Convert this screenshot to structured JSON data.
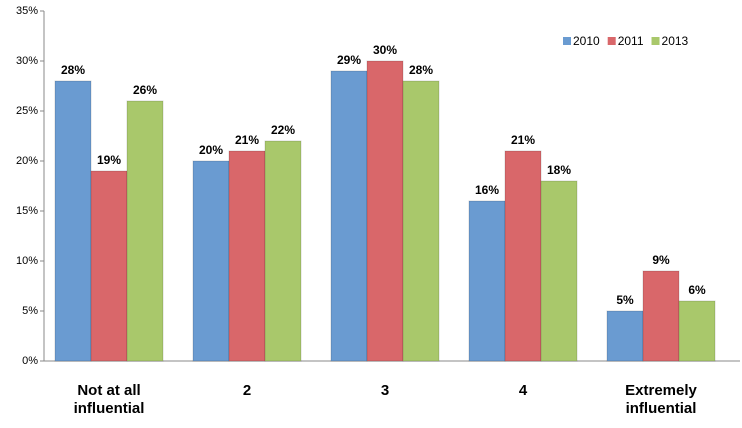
{
  "chart_data": {
    "type": "bar",
    "categories": [
      "Not at all influential",
      "2",
      "3",
      "4",
      "Extremely influential"
    ],
    "series": [
      {
        "name": "2010",
        "color": "#6a9bd1",
        "values": [
          28,
          20,
          29,
          16,
          5
        ],
        "value_labels": [
          "28%",
          "20%",
          "29%",
          "16%",
          "5%"
        ]
      },
      {
        "name": "2011",
        "color": "#d9676a",
        "values": [
          19,
          21,
          30,
          21,
          9
        ],
        "value_labels": [
          "19%",
          "21%",
          "30%",
          "21%",
          "9%"
        ]
      },
      {
        "name": "2013",
        "color": "#a9c86b",
        "values": [
          26,
          22,
          28,
          18,
          6
        ],
        "value_labels": [
          "26%",
          "22%",
          "28%",
          "18%",
          "6%"
        ]
      }
    ],
    "ylim": [
      0,
      35
    ],
    "yticks": [
      {
        "value": 0,
        "label": "0%"
      },
      {
        "value": 5,
        "label": "5%"
      },
      {
        "value": 10,
        "label": "10%"
      },
      {
        "value": 15,
        "label": "15%"
      },
      {
        "value": 20,
        "label": "20%"
      },
      {
        "value": 25,
        "label": "25%"
      },
      {
        "value": 30,
        "label": "30%"
      },
      {
        "value": 35,
        "label": "35%"
      }
    ],
    "legend": "top-right"
  }
}
